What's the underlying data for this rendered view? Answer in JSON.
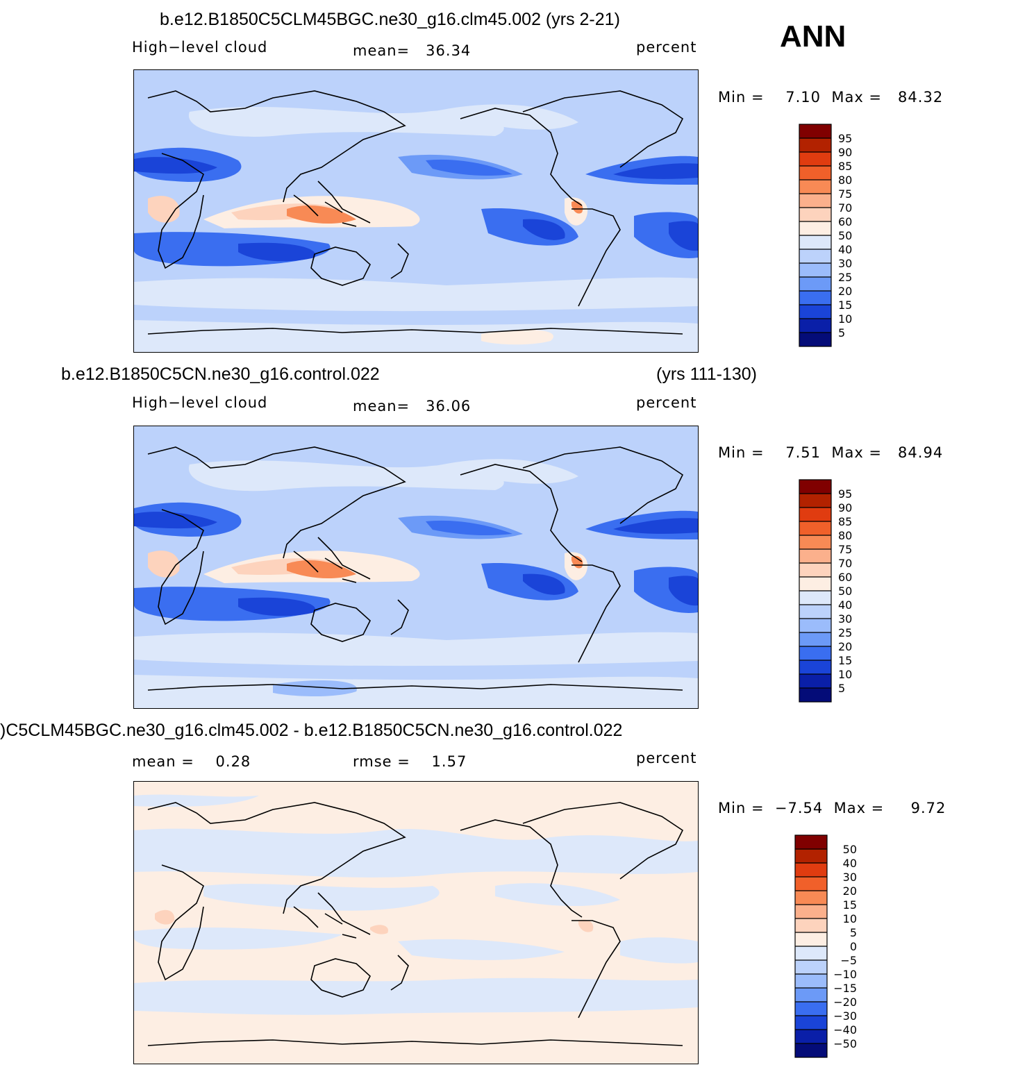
{
  "season": "ANN",
  "panels": [
    {
      "title": "b.e12.B1850C5CLM45BGC.ne30_g16.clm45.002 (yrs 2-21)",
      "title_right": "",
      "variable": "High−level cloud",
      "stat": "mean=   36.34",
      "units": "percent",
      "minmax": "Min =    7.10  Max =   84.32",
      "colorbar_labels": [
        "95",
        "90",
        "85",
        "80",
        "75",
        "70",
        "60",
        "50",
        "40",
        "30",
        "25",
        "20",
        "15",
        "10",
        "5"
      ]
    },
    {
      "title": "b.e12.B1850C5CN.ne30_g16.control.022",
      "title_right": "(yrs 111-130)",
      "variable": "High−level cloud",
      "stat": "mean=   36.06",
      "units": "percent",
      "minmax": "Min =    7.51  Max =   84.94",
      "colorbar_labels": [
        "95",
        "90",
        "85",
        "80",
        "75",
        "70",
        "60",
        "50",
        "40",
        "30",
        "25",
        "20",
        "15",
        "10",
        "5"
      ]
    },
    {
      "title": ")C5CLM45BGC.ne30_g16.clm45.002 - b.e12.B1850C5CN.ne30_g16.control.022",
      "title_right": "",
      "variable": "mean =    0.28",
      "stat": "rmse =    1.57",
      "units": "percent",
      "minmax": "Min =  −7.54  Max =     9.72",
      "colorbar_labels": [
        "50",
        "40",
        "30",
        "20",
        "15",
        "10",
        "5",
        "0",
        "−5",
        "−10",
        "−15",
        "−20",
        "−30",
        "−40",
        "−50"
      ]
    }
  ],
  "colors": {
    "abs_scale": [
      "#800000",
      "#b22200",
      "#e03c10",
      "#f0602a",
      "#f88a55",
      "#fbb08c",
      "#fdd3bd",
      "#fdeee3",
      "#dde8fa",
      "#bcd2fb",
      "#9bbcfb",
      "#6c9af7",
      "#3a6ef0",
      "#1a44d8",
      "#0a1fa8",
      "#040c78"
    ],
    "diff_scale": [
      "#800000",
      "#b22200",
      "#e03c10",
      "#f0602a",
      "#f88a55",
      "#fbb08c",
      "#fdd3bd",
      "#fdeee3",
      "#dde8fa",
      "#bcd2fb",
      "#9bbcfb",
      "#6c9af7",
      "#3a6ef0",
      "#1a44d8",
      "#0a1fa8",
      "#040c78"
    ]
  }
}
